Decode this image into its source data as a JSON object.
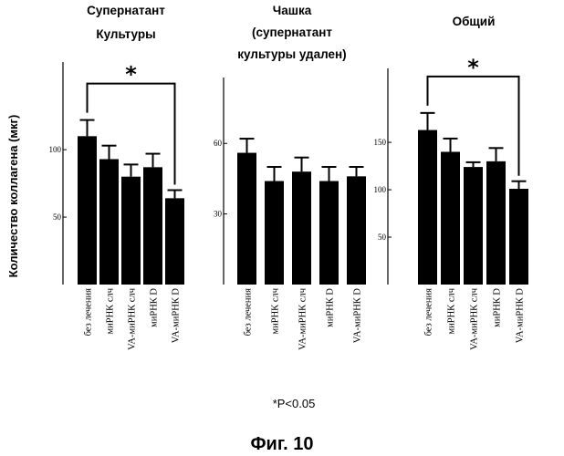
{
  "ylabel": "Количество коллагена (мкг)",
  "footnote": "*P<0.05",
  "caption": "Фиг. 10",
  "categories": [
    "без лечения",
    "миРНК слч",
    "VA-миРНК слч",
    "миРНК D",
    "VA-миРНК D"
  ],
  "colors": {
    "bar": "#000000",
    "axis": "#000000"
  },
  "chart_data": [
    {
      "type": "bar",
      "title_lines": [
        "Супернатант",
        "Культуры"
      ],
      "categories": [
        "без лечения",
        "миРНК слч",
        "VA-миРНК слч",
        "миРНК D",
        "VA-миРНК D"
      ],
      "values": [
        110,
        93,
        80,
        87,
        64
      ],
      "errors": [
        12,
        10,
        9,
        10,
        6
      ],
      "ylim": [
        0,
        165
      ],
      "yticks": [
        50,
        100
      ],
      "ytick_labels": [
        "50",
        "100"
      ],
      "significance": {
        "from": 0,
        "to": 4,
        "label": "*"
      }
    },
    {
      "type": "bar",
      "title_lines": [
        "Чашка",
        "(супернатант",
        "культуры удален)"
      ],
      "categories": [
        "без лечения",
        "миРНК слч",
        "VA-миРНК слч",
        "миРНК D",
        "VA-миРНК D"
      ],
      "values": [
        56,
        44,
        48,
        44,
        46
      ],
      "errors": [
        6,
        6,
        6,
        6,
        4
      ],
      "ylim": [
        0,
        88
      ],
      "yticks": [
        30,
        60
      ],
      "ytick_labels": [
        "30",
        "60"
      ]
    },
    {
      "type": "bar",
      "title_lines": [
        "Общий"
      ],
      "categories": [
        "без лечения",
        "миРНК слч",
        "VA-миРНК слч",
        "миРНК D",
        "VA-миРНК D"
      ],
      "values": [
        163,
        140,
        124,
        130,
        101
      ],
      "errors": [
        18,
        14,
        5,
        14,
        8
      ],
      "ylim": [
        0,
        228
      ],
      "yticks": [
        50,
        100,
        150
      ],
      "ytick_labels": [
        "50",
        "100",
        "150"
      ],
      "significance": {
        "from": 0,
        "to": 4,
        "label": "*"
      }
    }
  ]
}
